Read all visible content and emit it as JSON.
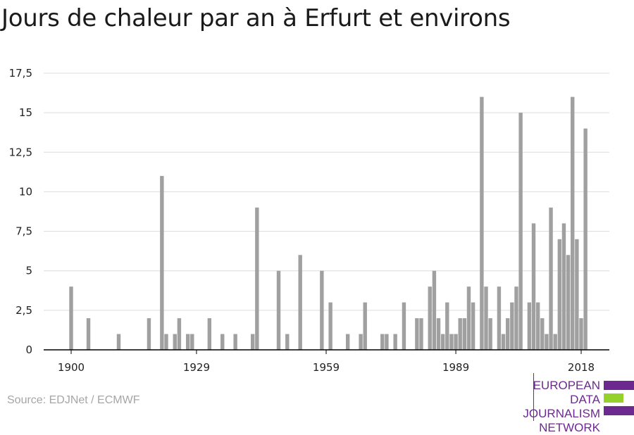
{
  "chart_data": {
    "type": "bar",
    "title": "Jours de chaleur par an à Erfurt et environs",
    "xlabel": "",
    "ylabel": "",
    "ylim": [
      0,
      17.5
    ],
    "yticks": [
      {
        "value": 0,
        "label": "0"
      },
      {
        "value": 2.5,
        "label": "2,5"
      },
      {
        "value": 5,
        "label": "5"
      },
      {
        "value": 7.5,
        "label": "7,5"
      },
      {
        "value": 10,
        "label": "10"
      },
      {
        "value": 12.5,
        "label": "12,5"
      },
      {
        "value": 15,
        "label": "15"
      },
      {
        "value": 17.5,
        "label": "17,5"
      }
    ],
    "xticks": [
      1900,
      1929,
      1959,
      1989,
      2018
    ],
    "xrange": [
      1894,
      2024
    ],
    "bar_color": "#a0a0a0",
    "grid": true,
    "data": [
      [
        1900,
        4
      ],
      [
        1904,
        2
      ],
      [
        1911,
        1
      ],
      [
        1918,
        2
      ],
      [
        1921,
        11
      ],
      [
        1922,
        1
      ],
      [
        1924,
        1
      ],
      [
        1925,
        2
      ],
      [
        1927,
        1
      ],
      [
        1928,
        1
      ],
      [
        1932,
        2
      ],
      [
        1935,
        1
      ],
      [
        1938,
        1
      ],
      [
        1942,
        1
      ],
      [
        1943,
        9
      ],
      [
        1948,
        5
      ],
      [
        1950,
        1
      ],
      [
        1953,
        6
      ],
      [
        1958,
        5
      ],
      [
        1960,
        3
      ],
      [
        1964,
        1
      ],
      [
        1967,
        1
      ],
      [
        1968,
        3
      ],
      [
        1972,
        1
      ],
      [
        1973,
        1
      ],
      [
        1975,
        1
      ],
      [
        1977,
        3
      ],
      [
        1980,
        2
      ],
      [
        1981,
        2
      ],
      [
        1983,
        4
      ],
      [
        1984,
        5
      ],
      [
        1985,
        2
      ],
      [
        1986,
        1
      ],
      [
        1987,
        3
      ],
      [
        1988,
        1
      ],
      [
        1989,
        1
      ],
      [
        1990,
        2
      ],
      [
        1991,
        2
      ],
      [
        1992,
        4
      ],
      [
        1993,
        3
      ],
      [
        1995,
        16
      ],
      [
        1996,
        4
      ],
      [
        1997,
        2
      ],
      [
        1999,
        4
      ],
      [
        2000,
        1
      ],
      [
        2001,
        2
      ],
      [
        2002,
        3
      ],
      [
        2003,
        4
      ],
      [
        2004,
        15
      ],
      [
        2006,
        3
      ],
      [
        2007,
        8
      ],
      [
        2008,
        3
      ],
      [
        2009,
        2
      ],
      [
        2010,
        1
      ],
      [
        2011,
        9
      ],
      [
        2012,
        1
      ],
      [
        2013,
        7
      ],
      [
        2014,
        8
      ],
      [
        2015,
        6
      ],
      [
        2016,
        16
      ],
      [
        2017,
        7
      ],
      [
        2018,
        2
      ],
      [
        2019,
        14
      ]
    ]
  },
  "source": "Source: EDJNet / ECMWF",
  "logo": {
    "lines": [
      "EUROPEAN",
      "DATA JOURNALISM",
      "NETWORK"
    ],
    "purple": "#6c2a90",
    "green": "#95d12b"
  }
}
